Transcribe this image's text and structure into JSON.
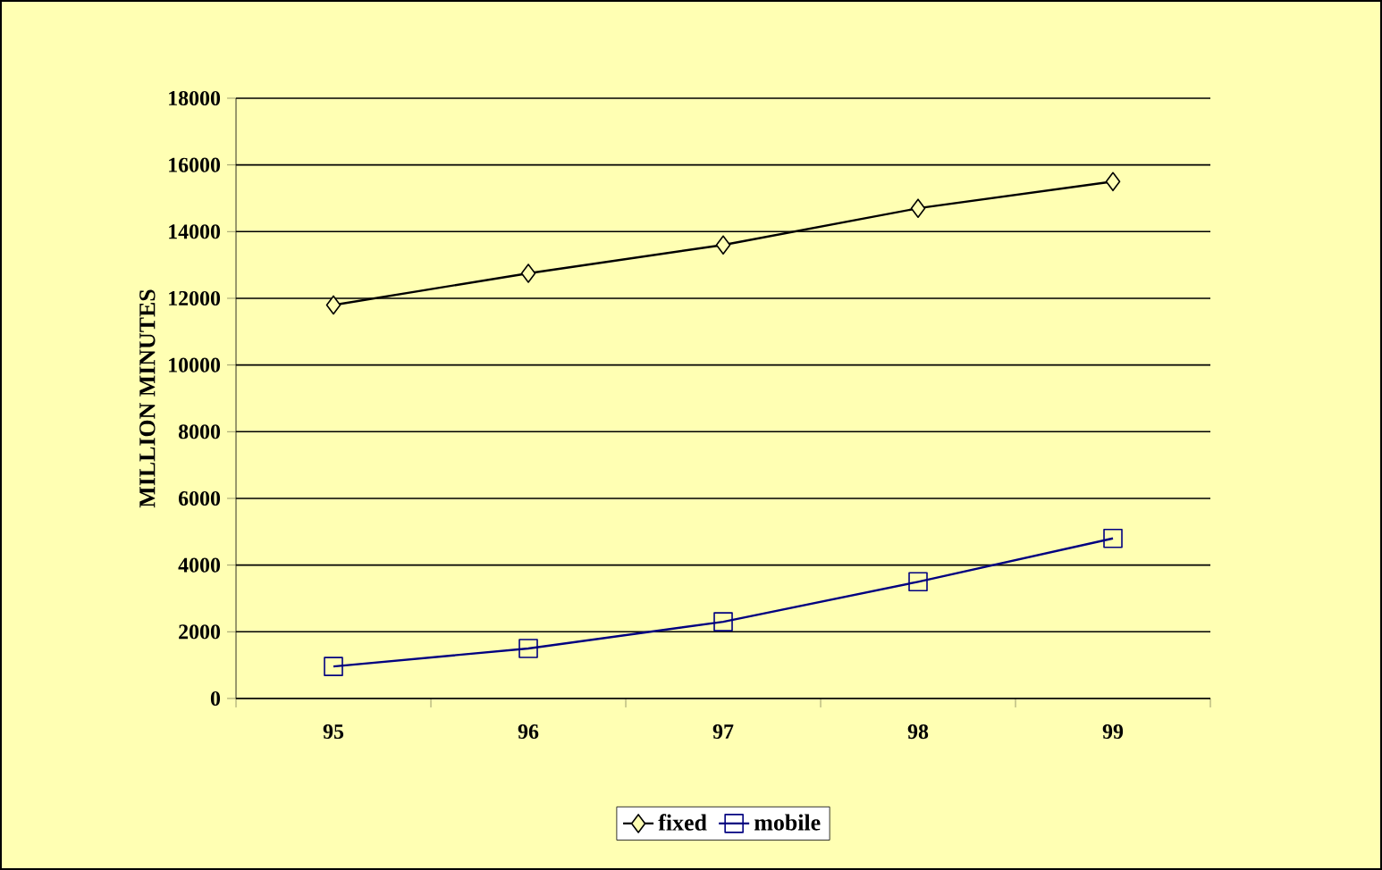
{
  "chart_data": {
    "type": "line",
    "ylabel": "MILLION MINUTES",
    "categories": [
      "95",
      "96",
      "97",
      "98",
      "99"
    ],
    "series": [
      {
        "name": "fixed",
        "color": "#000000",
        "marker": "diamond",
        "values": [
          11800,
          12750,
          13600,
          14700,
          15500
        ]
      },
      {
        "name": "mobile",
        "color": "#000080",
        "marker": "square",
        "values": [
          960,
          1500,
          2300,
          3500,
          4800
        ]
      }
    ],
    "ylim": [
      0,
      18000
    ],
    "yticks": [
      0,
      2000,
      4000,
      6000,
      8000,
      10000,
      12000,
      14000,
      16000,
      18000
    ],
    "grid": "y",
    "legend": "bottom"
  }
}
